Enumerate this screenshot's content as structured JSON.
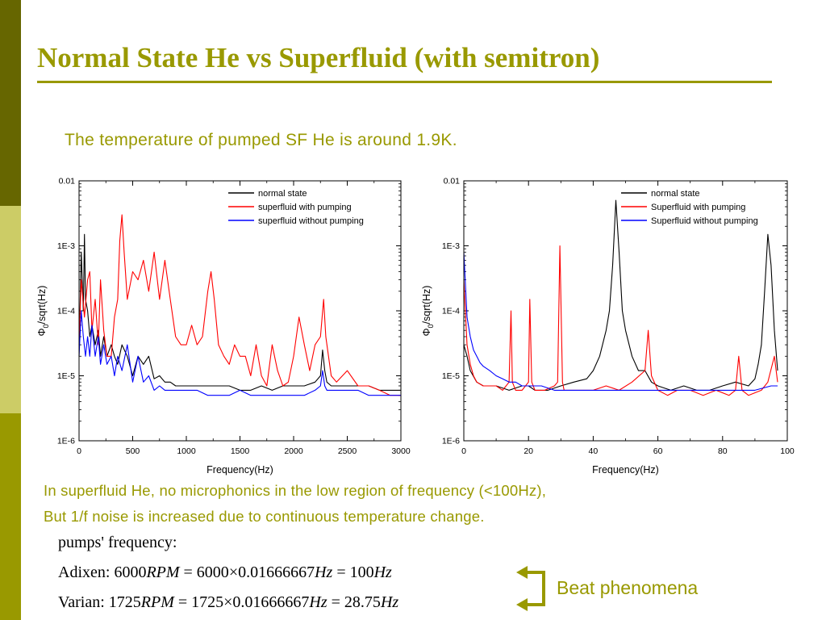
{
  "slide": {
    "title": "Normal State He vs Superfluid (with semitron)",
    "subtitle": "The temperature of pumped SF He is around 1.9K.",
    "note_line1": "In superfluid He, no microphonics in the low region of frequency (<100Hz),",
    "note_line2": "But 1/f noise is increased due to continuous temperature change.",
    "pumps_label": "pumps' frequency:",
    "adixen": {
      "name": "Adixen:",
      "rpm_value": "6000",
      "rpm_unit": "RPM",
      "eq1": "= 6000",
      "times": "×",
      "factor": "0.01666667",
      "hz_unit": "Hz",
      "eq2": "= 100",
      "result_unit": "Hz"
    },
    "varian": {
      "name": "Varian:",
      "rpm_value": "1725",
      "rpm_unit": "RPM",
      "eq1": "= 1725",
      "times": "×",
      "factor": "0.01666667",
      "hz_unit": "Hz",
      "eq2": "= 28.75",
      "result_unit": "Hz"
    },
    "beat_label": "Beat phenomena",
    "colors": {
      "accent": "#999900",
      "bar_dark": "#666600",
      "bar_light": "#cccc66",
      "normal": "#000000",
      "sf_pump": "#ff0000",
      "sf_nopump": "#0000ff"
    }
  },
  "chart_data": [
    {
      "type": "line",
      "xlabel": "Frequency(Hz)",
      "ylabel": "Φ0/sqrt(Hz)",
      "ylabel_main": "Φ",
      "ylabel_sub": "0",
      "ylabel_rest": "/sqrt(Hz)",
      "log_y": true,
      "xlim": [
        0,
        3000
      ],
      "ylim": [
        1e-06,
        0.01
      ],
      "xticks": [
        0,
        500,
        1000,
        1500,
        2000,
        2500,
        3000
      ],
      "xticklabels": [
        "0",
        "500",
        "1000",
        "1500",
        "2000",
        "2500",
        "3000"
      ],
      "yticks": [
        1e-06,
        1e-05,
        0.0001,
        0.001,
        0.01
      ],
      "yticklabels": [
        "1E-6",
        "1E-5",
        "1E-4",
        "1E-3",
        "0.01"
      ],
      "legend_position": "top-right",
      "series": [
        {
          "name": "normal state",
          "color": "#000000",
          "x": [
            0,
            20,
            40,
            50,
            60,
            80,
            100,
            120,
            150,
            180,
            200,
            230,
            260,
            300,
            330,
            360,
            400,
            450,
            500,
            550,
            600,
            650,
            700,
            750,
            800,
            850,
            900,
            1000,
            1100,
            1200,
            1300,
            1400,
            1500,
            1600,
            1700,
            1800,
            1900,
            2000,
            2100,
            2200,
            2250,
            2270,
            2290,
            2310,
            2350,
            2400,
            2500,
            2600,
            2700,
            2800,
            2900,
            3000
          ],
          "y": [
            2e-05,
            0.0008,
            0.0001,
            0.0015,
            0.00015,
            0.0001,
            4e-05,
            6e-05,
            3e-05,
            5e-05,
            2e-05,
            4e-05,
            2e-05,
            3e-05,
            2e-05,
            1.5e-05,
            3e-05,
            2e-05,
            1e-05,
            2e-05,
            1.5e-05,
            2e-05,
            9e-06,
            1e-05,
            8e-06,
            8e-06,
            7e-06,
            7e-06,
            7e-06,
            7e-06,
            7e-06,
            7e-06,
            6e-06,
            6e-06,
            7e-06,
            6e-06,
            7e-06,
            7e-06,
            7e-06,
            8e-06,
            1e-05,
            2.5e-05,
            1.2e-05,
            8e-06,
            7e-06,
            7e-06,
            7e-06,
            7e-06,
            7e-06,
            6e-06,
            6e-06,
            6e-06
          ]
        },
        {
          "name": "superfluid with pumping",
          "color": "#ff0000",
          "x": [
            0,
            20,
            50,
            80,
            100,
            120,
            150,
            180,
            200,
            230,
            260,
            300,
            330,
            360,
            380,
            400,
            420,
            450,
            500,
            550,
            600,
            650,
            700,
            750,
            800,
            850,
            900,
            950,
            1000,
            1050,
            1100,
            1150,
            1200,
            1230,
            1260,
            1300,
            1350,
            1400,
            1450,
            1500,
            1550,
            1600,
            1650,
            1700,
            1750,
            1800,
            1850,
            1900,
            1950,
            2000,
            2050,
            2100,
            2150,
            2200,
            2250,
            2280,
            2300,
            2350,
            2400,
            2500,
            2600,
            2700,
            2800,
            2900,
            3000
          ],
          "y": [
            3e-05,
            0.0003,
            8e-05,
            0.0003,
            0.0004,
            5e-05,
            0.00015,
            3e-05,
            0.0003,
            5e-05,
            2e-05,
            2e-05,
            8e-05,
            0.00015,
            0.0012,
            0.003,
            0.0008,
            0.00015,
            0.0004,
            0.0003,
            0.0006,
            0.0002,
            0.0008,
            0.00015,
            0.0006,
            0.00015,
            4e-05,
            3e-05,
            3e-05,
            6e-05,
            3e-05,
            4e-05,
            0.0002,
            0.0004,
            0.00015,
            3e-05,
            2e-05,
            1.5e-05,
            3e-05,
            2e-05,
            2e-05,
            1e-05,
            3e-05,
            1e-05,
            7e-06,
            3e-05,
            1.2e-05,
            7e-06,
            8e-06,
            2e-05,
            8e-05,
            3e-05,
            1.2e-05,
            3e-05,
            4e-05,
            0.00015,
            4e-05,
            1e-05,
            8e-06,
            1.2e-05,
            7e-06,
            7e-06,
            6e-06,
            5e-06,
            5e-06
          ]
        },
        {
          "name": "superfluid without pumping",
          "color": "#0000ff",
          "x": [
            0,
            20,
            40,
            60,
            80,
            100,
            120,
            150,
            180,
            200,
            230,
            260,
            300,
            330,
            360,
            400,
            450,
            500,
            550,
            600,
            650,
            700,
            750,
            800,
            900,
            1000,
            1100,
            1200,
            1300,
            1400,
            1500,
            1600,
            1700,
            1800,
            1900,
            2000,
            2100,
            2200,
            2250,
            2270,
            2290,
            2310,
            2350,
            2400,
            2500,
            2600,
            2700,
            2800,
            2900,
            3000
          ],
          "y": [
            2e-05,
            0.0001,
            4e-05,
            2e-05,
            4e-05,
            2e-05,
            6e-05,
            2e-05,
            4e-05,
            1.5e-05,
            3e-05,
            1.5e-05,
            2e-05,
            1e-05,
            2e-05,
            1.2e-05,
            3e-05,
            8e-06,
            2e-05,
            8e-06,
            1e-05,
            6e-06,
            7e-06,
            6e-06,
            6e-06,
            6e-06,
            6e-06,
            5e-06,
            5e-06,
            5e-06,
            6e-06,
            5e-06,
            5e-06,
            5e-06,
            5e-06,
            5e-06,
            5e-06,
            6e-06,
            7e-06,
            1.2e-05,
            7e-06,
            6e-06,
            6e-06,
            6e-06,
            6e-06,
            6e-06,
            5e-06,
            5e-06,
            5e-06,
            5e-06
          ]
        }
      ]
    },
    {
      "type": "line",
      "xlabel": "Frequency(Hz)",
      "ylabel": "Φ0/sqrt(Hz)",
      "ylabel_main": "Φ",
      "ylabel_sub": "0",
      "ylabel_rest": "/sqrt(Hz)",
      "log_y": true,
      "xlim": [
        0,
        100
      ],
      "ylim": [
        1e-06,
        0.01
      ],
      "xticks": [
        0,
        20,
        40,
        60,
        80,
        100
      ],
      "xticklabels": [
        "0",
        "20",
        "40",
        "60",
        "80",
        "100"
      ],
      "yticks": [
        1e-06,
        1e-05,
        0.0001,
        0.001,
        0.01
      ],
      "yticklabels": [
        "1E-6",
        "1E-5",
        "1E-4",
        "1E-3",
        "0.01"
      ],
      "legend_position": "top-right",
      "series": [
        {
          "name": "normal state",
          "color": "#000000",
          "x": [
            0,
            1,
            2,
            4,
            6,
            8,
            10,
            14,
            18,
            20,
            22,
            26,
            30,
            34,
            38,
            40,
            42,
            44,
            45,
            46,
            47,
            48,
            49,
            50,
            52,
            54,
            56,
            58,
            60,
            64,
            68,
            72,
            76,
            80,
            84,
            88,
            90,
            91,
            92,
            93,
            94,
            95,
            96,
            97
          ],
          "y": [
            3e-05,
            2e-05,
            1.2e-05,
            8e-06,
            7e-06,
            7e-06,
            7e-06,
            6e-06,
            7e-06,
            7e-06,
            6e-06,
            6e-06,
            7e-06,
            8e-06,
            9e-06,
            1.2e-05,
            2e-05,
            5e-05,
            0.0001,
            0.0005,
            0.005,
            0.0008,
            0.0001,
            5e-05,
            2e-05,
            1.2e-05,
            1.2e-05,
            8e-06,
            7e-06,
            6e-06,
            7e-06,
            6e-06,
            6e-06,
            7e-06,
            8e-06,
            7e-06,
            9e-06,
            1.5e-05,
            3e-05,
            0.0002,
            0.0015,
            0.0005,
            5e-05,
            1.2e-05
          ]
        },
        {
          "name": "Superfluid with pumping",
          "color": "#ff0000",
          "x": [
            0,
            1,
            2,
            3,
            4,
            6,
            8,
            10,
            12,
            14,
            14.6,
            15,
            16,
            18,
            20,
            20.4,
            21,
            22,
            25,
            28,
            29,
            29.7,
            30.5,
            31,
            33,
            36,
            40,
            44,
            48,
            52,
            56,
            57,
            58,
            60,
            63,
            66,
            70,
            74,
            78,
            82,
            84,
            85,
            86,
            88,
            92,
            94,
            96,
            97
          ],
          "y": [
            0.0003,
            3e-05,
            1.5e-05,
            1e-05,
            8e-06,
            7e-06,
            7e-06,
            7e-06,
            6e-06,
            8e-06,
            0.0001,
            8e-06,
            6e-06,
            6e-06,
            8e-06,
            0.00015,
            8e-06,
            6e-06,
            6e-06,
            7e-06,
            8e-06,
            0.001,
            8e-06,
            6e-06,
            6e-06,
            6e-06,
            6e-06,
            7e-06,
            6e-06,
            8e-06,
            1.2e-05,
            5e-05,
            1e-05,
            6e-06,
            5e-06,
            6e-06,
            6e-06,
            5e-06,
            6e-06,
            5e-06,
            6e-06,
            2e-05,
            6e-06,
            5e-06,
            6e-06,
            8e-06,
            2e-05,
            8e-06
          ]
        },
        {
          "name": "Superfluid without pumping",
          "color": "#0000ff",
          "x": [
            0,
            1,
            2,
            3,
            4,
            5,
            6,
            8,
            10,
            12,
            14,
            16,
            18,
            20,
            24,
            28,
            32,
            36,
            40,
            45,
            50,
            55,
            60,
            65,
            70,
            75,
            80,
            85,
            90,
            95,
            97
          ],
          "y": [
            0.0008,
            8e-05,
            4e-05,
            2.5e-05,
            2e-05,
            1.6e-05,
            1.4e-05,
            1.2e-05,
            1e-05,
            9e-06,
            8e-06,
            8e-06,
            7e-06,
            7e-06,
            7e-06,
            6e-06,
            6e-06,
            6e-06,
            6e-06,
            6e-06,
            6e-06,
            6e-06,
            6e-06,
            6e-06,
            6e-06,
            6e-06,
            6e-06,
            6e-06,
            6e-06,
            7e-06,
            7e-06
          ]
        }
      ]
    }
  ]
}
